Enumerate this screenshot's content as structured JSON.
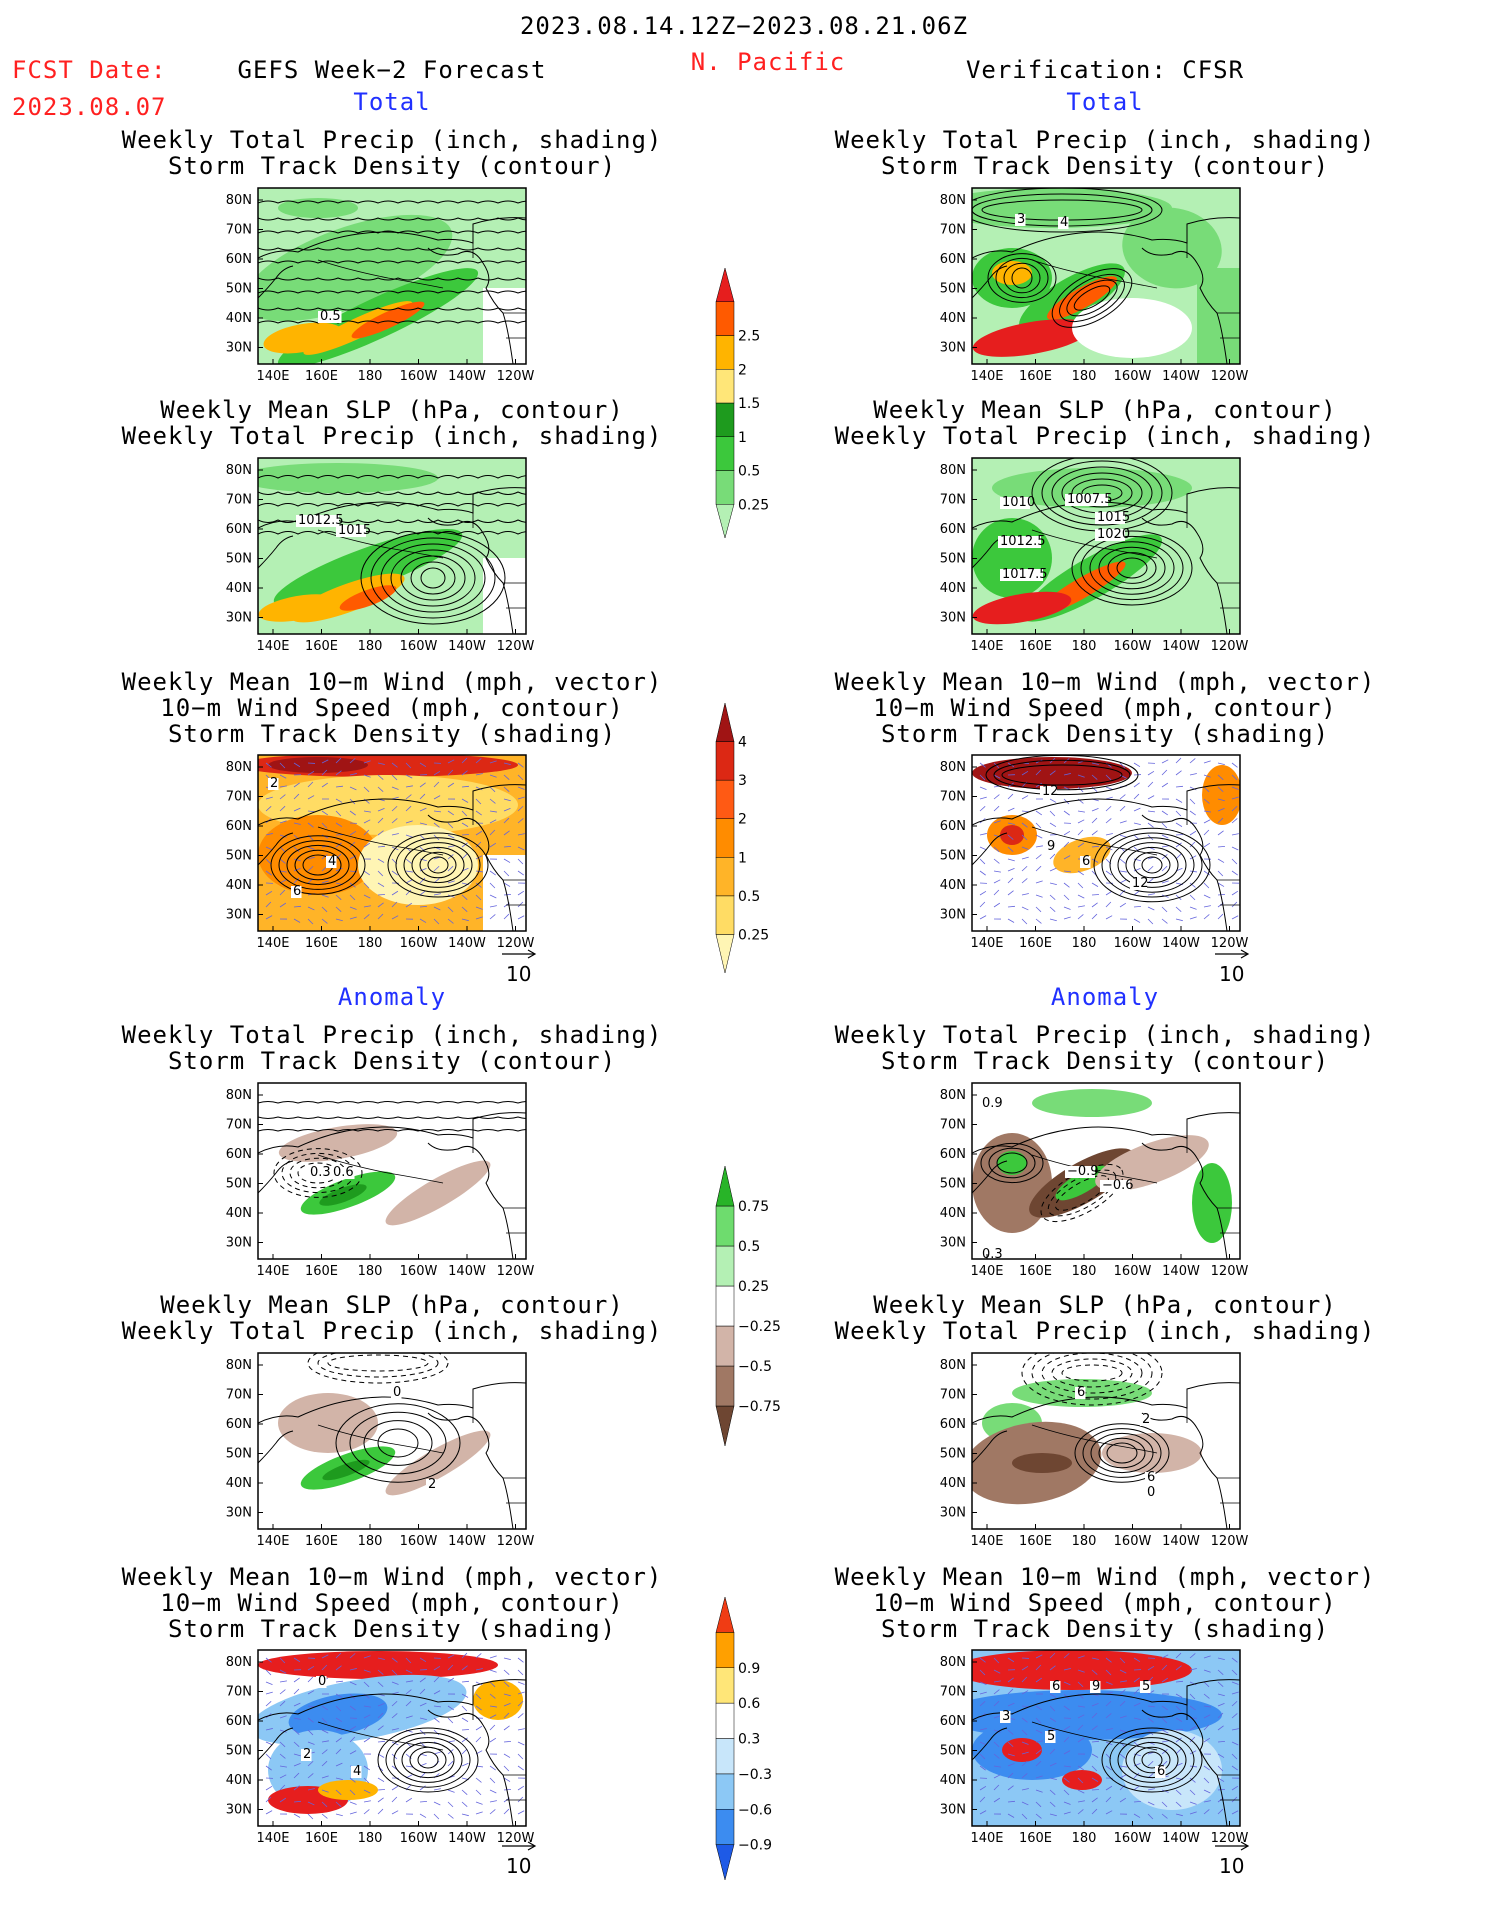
{
  "header": {
    "period": "2023.08.14.12Z−2023.08.21.06Z",
    "fcst_label": "FCST Date:",
    "fcst_date": "2023.08.07",
    "left_title": "GEFS Week−2 Forecast",
    "region": "N. Pacific",
    "right_title": "Verification: CFSR"
  },
  "sections": {
    "total": "Total",
    "anomaly": "Anomaly"
  },
  "panel_titles": {
    "precip_track": [
      "Weekly Total Precip (inch, shading)",
      "Storm Track Density (contour)"
    ],
    "slp_precip": [
      "Weekly Mean SLP (hPa, contour)",
      "Weekly Total Precip (inch, shading)"
    ],
    "wind_track": [
      "Weekly Mean 10−m Wind (mph, vector)",
      "10−m Wind Speed (mph, contour)",
      "Storm Track Density (shading)"
    ]
  },
  "vector_scale_label": "10",
  "chart_data": [
    {
      "type": "heatmap",
      "name": "map-axes",
      "x_ticks": [
        "140E",
        "160E",
        "180",
        "160W",
        "140W",
        "120W"
      ],
      "y_ticks": [
        "80N",
        "70N",
        "60N",
        "50N",
        "40N",
        "30N"
      ],
      "panels": [
        {
          "id": "fc-total-precip-track",
          "column": "GEFS Week−2 Forecast",
          "contour_labels": [
            "0.5"
          ]
        },
        {
          "id": "vf-total-precip-track",
          "column": "Verification: CFSR",
          "contour_labels": [
            "3",
            "4"
          ]
        },
        {
          "id": "fc-total-slp-precip",
          "column": "GEFS Week−2 Forecast",
          "contour_labels": [
            "1012.5",
            "1015"
          ]
        },
        {
          "id": "vf-total-slp-precip",
          "column": "Verification: CFSR",
          "contour_labels": [
            "1010",
            "1007.5",
            "1015",
            "1012.5",
            "1020",
            "1017.5"
          ]
        },
        {
          "id": "fc-total-wind-track",
          "column": "GEFS Week−2 Forecast",
          "contour_labels": [
            "2",
            "4",
            "6"
          ]
        },
        {
          "id": "vf-total-wind-track",
          "column": "Verification: CFSR",
          "contour_labels": [
            "12",
            "9",
            "6",
            "12"
          ]
        },
        {
          "id": "fc-anom-precip-track",
          "column": "GEFS Week−2 Forecast",
          "contour_labels": [
            "0.3",
            "0.6"
          ]
        },
        {
          "id": "vf-anom-precip-track",
          "column": "Verification: CFSR",
          "contour_labels": [
            "0.9",
            "−0.9",
            "−0.6",
            "0.3"
          ]
        },
        {
          "id": "fc-anom-slp-precip",
          "column": "GEFS Week−2 Forecast",
          "contour_labels": [
            "0",
            "2"
          ]
        },
        {
          "id": "vf-anom-slp-precip",
          "column": "Verification: CFSR",
          "contour_labels": [
            "6",
            "2",
            "6",
            "0"
          ]
        },
        {
          "id": "fc-anom-wind-track",
          "column": "GEFS Week−2 Forecast",
          "contour_labels": [
            "0",
            "2",
            "4"
          ]
        },
        {
          "id": "vf-anom-wind-track",
          "column": "Verification: CFSR",
          "contour_labels": [
            "6",
            "9",
            "5",
            "3",
            "5",
            "6"
          ]
        }
      ]
    },
    {
      "type": "colorbar",
      "name": "precip-total-colorbar",
      "levels": [
        0.25,
        0.5,
        1,
        1.5,
        2,
        2.5
      ],
      "labels": [
        "0.25",
        "0.5",
        "1",
        "1.5",
        "2",
        "2.5"
      ],
      "colors": [
        "#b4f0b4",
        "#78dc78",
        "#3cc83c",
        "#1e9b1e",
        "#ffe678",
        "#ffb400",
        "#ff5a00",
        "#e61e1e"
      ]
    },
    {
      "type": "colorbar",
      "name": "track-total-colorbar",
      "levels": [
        0.25,
        0.5,
        1,
        2,
        3,
        4
      ],
      "labels": [
        "0.25",
        "0.5",
        "1",
        "2",
        "3",
        "4"
      ],
      "colors": [
        "#fff5b4",
        "#ffdc64",
        "#ffb428",
        "#ff8c00",
        "#ff5a14",
        "#dc2814",
        "#a01414"
      ]
    },
    {
      "type": "colorbar",
      "name": "precip-anomaly-colorbar",
      "levels": [
        -0.75,
        -0.5,
        -0.25,
        0.25,
        0.5,
        0.75
      ],
      "labels": [
        "−0.75",
        "−0.5",
        "−0.25",
        "0.25",
        "0.5",
        "0.75"
      ],
      "colors": [
        "#6e4632",
        "#a07864",
        "#d2b4a8",
        "#ffffff",
        "#b4f0b4",
        "#6edc6e",
        "#28b428"
      ]
    },
    {
      "type": "colorbar",
      "name": "track-anomaly-colorbar",
      "levels": [
        -0.9,
        -0.6,
        -0.3,
        0.3,
        0.6,
        0.9
      ],
      "labels": [
        "−0.9",
        "−0.6",
        "−0.3",
        "0.3",
        "0.6",
        "0.9"
      ],
      "colors": [
        "#1e5ae6",
        "#3c8cf0",
        "#8cc8f5",
        "#c8e6fa",
        "#ffffff",
        "#ffe678",
        "#ffa000",
        "#f03c14"
      ]
    }
  ],
  "colors": {
    "header_red": "#ff2020",
    "section_blue": "#2030ff",
    "land": "#ffffff",
    "contour": "#000000",
    "vector": "#6464dc"
  }
}
